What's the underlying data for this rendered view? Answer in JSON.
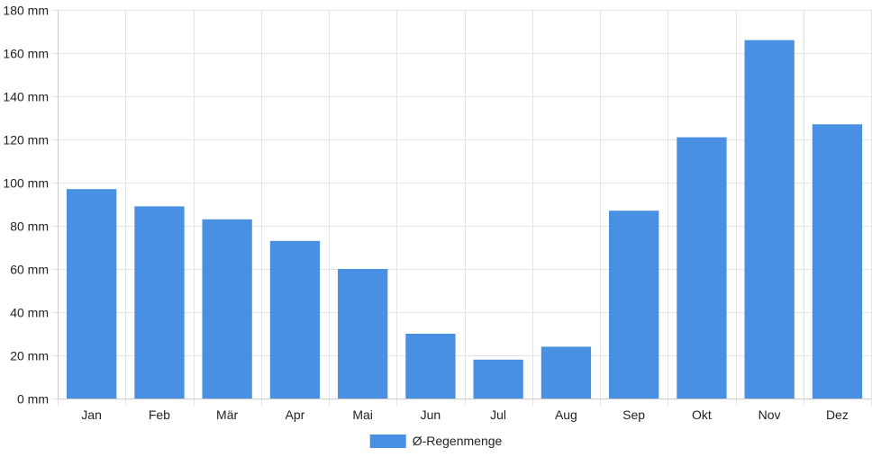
{
  "chart_data": {
    "type": "bar",
    "categories": [
      "Jan",
      "Feb",
      "Mär",
      "Apr",
      "Mai",
      "Jun",
      "Jul",
      "Aug",
      "Sep",
      "Okt",
      "Nov",
      "Dez"
    ],
    "series": [
      {
        "name": "Ø-Regenmenge",
        "values": [
          97,
          89,
          83,
          73,
          60,
          30,
          18,
          24,
          87,
          121,
          166,
          127
        ],
        "color": "#4a90e2"
      }
    ],
    "ylim": [
      0,
      180
    ],
    "yticks": [
      0,
      20,
      40,
      60,
      80,
      100,
      120,
      140,
      160,
      180
    ],
    "ytick_suffix": " mm",
    "grid": true,
    "legend": "bottom-center"
  }
}
